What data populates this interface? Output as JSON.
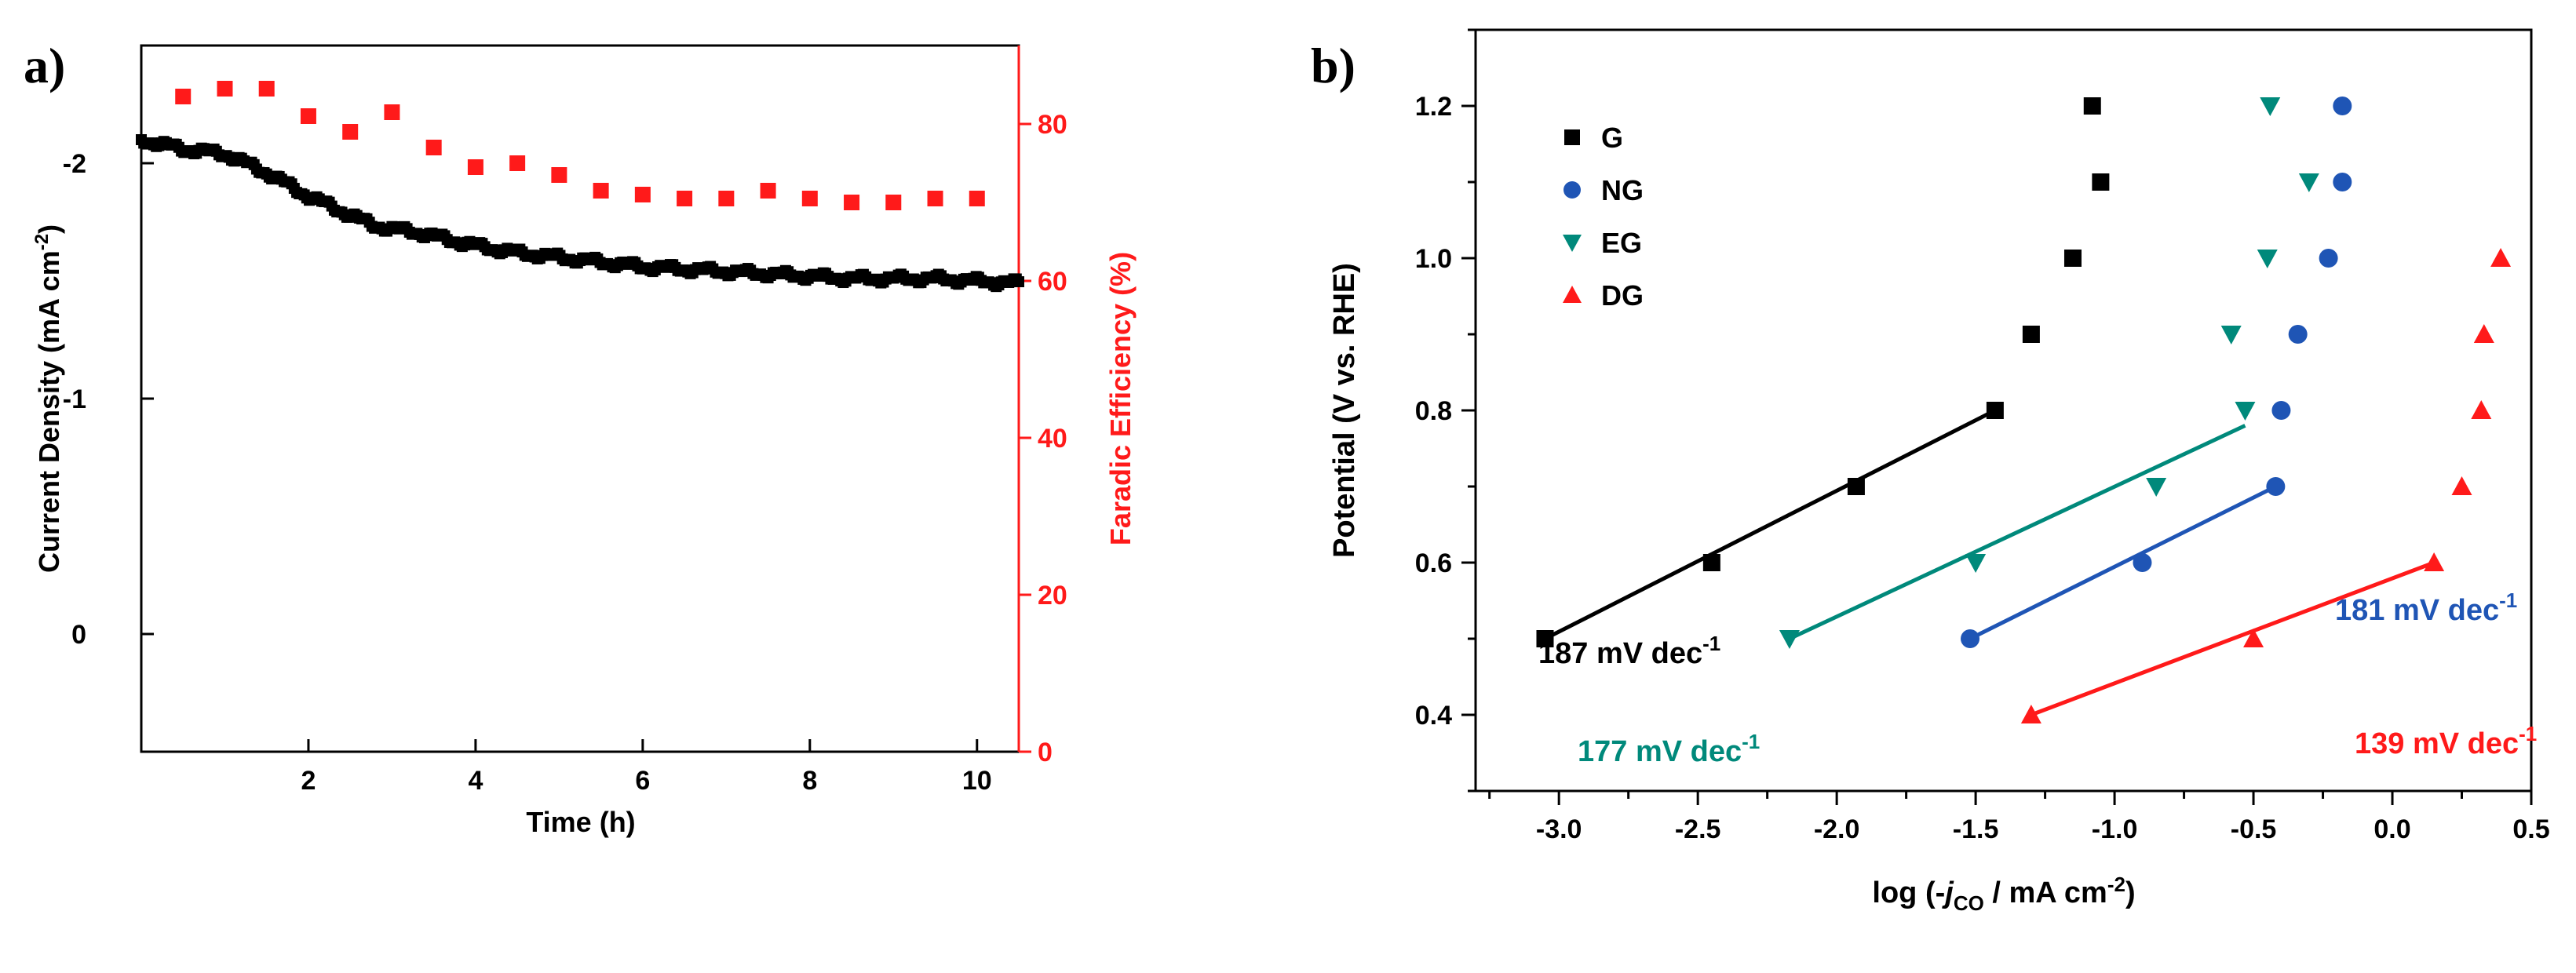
{
  "chart_data": [
    {
      "panel": "a)",
      "type": "scatter",
      "xlabel": "Time (h)",
      "ylabel_left": "Current Density (mA cm-2)",
      "ylabel_left_main": "Current Density (mA cm",
      "ylabel_left_sup": "-2",
      "ylabel_left_tail": ")",
      "ylabel_right": "Faradic Efficiency (%)",
      "xlim": [
        0,
        10.5
      ],
      "ylim_left": [
        0.5,
        -2.5
      ],
      "ylim_right": [
        0,
        90
      ],
      "xticks": [
        2,
        4,
        6,
        8,
        10
      ],
      "xtick_labels": [
        "2",
        "4",
        "6",
        "8",
        "10"
      ],
      "yticks_left": [
        0,
        -1,
        -2
      ],
      "ytick_labels_left": [
        "0",
        "-1",
        "-2"
      ],
      "yticks_right": [
        0,
        20,
        40,
        60,
        80
      ],
      "ytick_labels_right": [
        "0",
        "20",
        "40",
        "60",
        "80"
      ],
      "colors": {
        "current": "#000000",
        "faradaic": "#ff1a1a"
      },
      "current_density": {
        "time": [
          0,
          0.25,
          0.5,
          0.75,
          1.0,
          1.25,
          1.5,
          1.75,
          2.0,
          2.25,
          2.5,
          2.75,
          3.0,
          3.25,
          3.5,
          3.75,
          4.0,
          4.5,
          5.0,
          5.5,
          6.0,
          6.5,
          7.0,
          7.5,
          8.0,
          8.5,
          9.0,
          9.5,
          10.0,
          10.5
        ],
        "values": [
          -2.1,
          -2.08,
          -2.06,
          -2.05,
          -2.04,
          -2.0,
          -1.96,
          -1.91,
          -1.86,
          -1.82,
          -1.78,
          -1.74,
          -1.72,
          -1.71,
          -1.69,
          -1.67,
          -1.65,
          -1.62,
          -1.6,
          -1.58,
          -1.56,
          -1.55,
          -1.54,
          -1.53,
          -1.52,
          -1.51,
          -1.51,
          -1.51,
          -1.5,
          -1.49
        ]
      },
      "faradaic_efficiency": {
        "time": [
          0.5,
          1.0,
          1.5,
          2.0,
          2.5,
          3.0,
          3.5,
          4.0,
          4.5,
          5.0,
          5.5,
          6.0,
          6.5,
          7.0,
          7.5,
          8.0,
          8.5,
          9.0,
          9.5,
          10.0
        ],
        "values": [
          83.5,
          84.5,
          84.5,
          81,
          79,
          81.5,
          77,
          74.5,
          75,
          73.5,
          71.5,
          71,
          70.5,
          70.5,
          71.5,
          70.5,
          70,
          70,
          70.5,
          70.5
        ]
      }
    },
    {
      "panel": "b)",
      "type": "scatter",
      "xlabel": "log (-jCO / mA cm-2)",
      "xlabel_pre": "log (-",
      "xlabel_j": "j",
      "xlabel_sub": "CO",
      "xlabel_mid": " / mA cm",
      "xlabel_sup": "-2",
      "xlabel_end": ")",
      "ylabel": "Potential (V vs. RHE)",
      "xlim": [
        -3.3,
        0.5
      ],
      "ylim": [
        0.3,
        1.3
      ],
      "xticks": [
        -3.0,
        -2.5,
        -2.0,
        -1.5,
        -1.0,
        -0.5,
        0.0,
        0.5
      ],
      "xtick_labels": [
        "-3.0",
        "-2.5",
        "-2.0",
        "-1.5",
        "-1.0",
        "-0.5",
        "0.0",
        "0.5"
      ],
      "yticks": [
        0.4,
        0.6,
        0.8,
        1.0,
        1.2
      ],
      "ytick_labels": [
        "0.4",
        "0.6",
        "0.8",
        "1.0",
        "1.2"
      ],
      "series": [
        {
          "name": "G",
          "color": "#000000",
          "marker": "square",
          "x": [
            -3.05,
            -2.45,
            -1.93,
            -1.43,
            -1.3,
            -1.15,
            -1.05,
            -1.08
          ],
          "y": [
            0.5,
            0.6,
            0.7,
            0.8,
            0.9,
            1.0,
            1.1,
            1.2
          ],
          "fit": {
            "x": [
              -3.05,
              -1.43
            ],
            "y": [
              0.5,
              0.8
            ]
          },
          "slope_label": "187 mV dec",
          "slope_sup": "-1"
        },
        {
          "name": "NG",
          "color": "#1f55b5",
          "marker": "circle",
          "x": [
            -1.52,
            -0.9,
            -0.42,
            -0.4,
            -0.34,
            -0.23,
            -0.18,
            -0.18
          ],
          "y": [
            0.5,
            0.6,
            0.7,
            0.8,
            0.9,
            1.0,
            1.1,
            1.2
          ],
          "fit": {
            "x": [
              -1.52,
              -0.42
            ],
            "y": [
              0.5,
              0.7
            ]
          },
          "slope_label": "181 mV dec",
          "slope_sup": "-1"
        },
        {
          "name": "EG",
          "color": "#00897b",
          "marker": "triangle-down",
          "x": [
            -2.17,
            -1.5,
            -0.85,
            -0.53,
            -0.58,
            -0.45,
            -0.3,
            -0.44
          ],
          "y": [
            0.5,
            0.6,
            0.7,
            0.8,
            0.9,
            1.0,
            1.1,
            1.2
          ],
          "fit": {
            "x": [
              -2.17,
              -0.53
            ],
            "y": [
              0.5,
              0.78
            ]
          },
          "slope_label": "177 mV dec",
          "slope_sup": "-1"
        },
        {
          "name": "DG",
          "color": "#ff1a1a",
          "marker": "triangle-up",
          "x": [
            -1.3,
            -0.5,
            0.15,
            0.25,
            0.32,
            0.33,
            0.39
          ],
          "y": [
            0.4,
            0.5,
            0.6,
            0.7,
            0.8,
            0.9,
            1.0
          ],
          "fit": {
            "x": [
              -1.3,
              0.15
            ],
            "y": [
              0.4,
              0.6
            ]
          },
          "slope_label": "139 mV dec",
          "slope_sup": "-1"
        }
      ]
    }
  ]
}
